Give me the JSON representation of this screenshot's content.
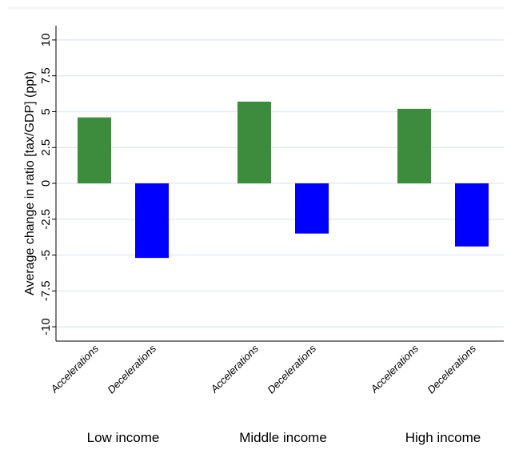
{
  "chart_data": {
    "type": "bar",
    "ylabel": "Average change in ratio [tax/GDP] (ppt)",
    "categories": [
      "Low income",
      "Middle income",
      "High income"
    ],
    "series": [
      {
        "name": "Accelerations",
        "color": "#3d8b3d",
        "values": [
          4.6,
          5.7,
          5.2
        ]
      },
      {
        "name": "Decelerations",
        "color": "#0000ff",
        "values": [
          -5.2,
          -3.5,
          -4.4
        ]
      }
    ],
    "ylim": [
      -11,
      11
    ],
    "yticks": [
      -10,
      -7.5,
      -5,
      -2.5,
      0,
      2.5,
      5,
      7.5,
      10
    ],
    "grid": true
  }
}
